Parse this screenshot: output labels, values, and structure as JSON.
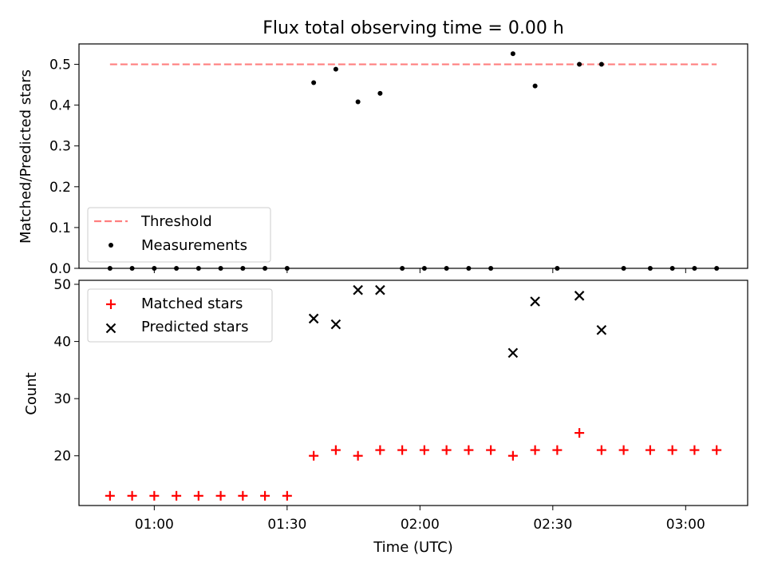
{
  "chart_data": [
    {
      "type": "scatter",
      "title": "Flux total observing time = 0.00 h",
      "xlabel": "",
      "ylabel": "Matched/Predicted stars",
      "xlim": [
        "00:43",
        "03:14"
      ],
      "ylim": [
        0,
        0.55
      ],
      "yticks": [
        "0.0",
        "0.1",
        "0.2",
        "0.3",
        "0.4",
        "0.5"
      ],
      "legend": {
        "placement": "lower-left",
        "entries": [
          "Threshold",
          "Measurements"
        ]
      },
      "series": [
        {
          "name": "Threshold",
          "style": "dashed-line",
          "color": "#ff7f7f",
          "x": [
            "00:50",
            "03:07"
          ],
          "y": [
            0.5,
            0.5
          ]
        },
        {
          "name": "Measurements",
          "style": "dot",
          "color": "#000000",
          "x": [
            "00:50",
            "00:55",
            "01:00",
            "01:05",
            "01:10",
            "01:15",
            "01:20",
            "01:25",
            "01:30",
            "01:36",
            "01:41",
            "01:46",
            "01:51",
            "01:56",
            "02:01",
            "02:06",
            "02:11",
            "02:16",
            "02:21",
            "02:26",
            "02:31",
            "02:36",
            "02:41",
            "02:46",
            "02:52",
            "02:57",
            "03:02",
            "03:07"
          ],
          "y": [
            0,
            0,
            0,
            0,
            0,
            0,
            0,
            0,
            0,
            0.455,
            0.488,
            0.408,
            0.429,
            0,
            0,
            0,
            0,
            0,
            0.526,
            0.447,
            0,
            0.5,
            0.5,
            0,
            0,
            0,
            0,
            0
          ]
        }
      ]
    },
    {
      "type": "scatter",
      "title": "",
      "xlabel": "Time (UTC)",
      "ylabel": "Count",
      "xlim": [
        "00:43",
        "03:14"
      ],
      "ylim": [
        11.3,
        50.7
      ],
      "yticks": [
        "20",
        "30",
        "40",
        "50"
      ],
      "xticks": [
        "01:00",
        "01:30",
        "02:00",
        "02:30",
        "03:00"
      ],
      "legend": {
        "placement": "upper-left",
        "entries": [
          "Matched stars",
          "Predicted stars"
        ]
      },
      "series": [
        {
          "name": "Matched stars",
          "marker": "plus",
          "color": "#ff0000",
          "x": [
            "00:50",
            "00:55",
            "01:00",
            "01:05",
            "01:10",
            "01:15",
            "01:20",
            "01:25",
            "01:30",
            "01:36",
            "01:41",
            "01:46",
            "01:51",
            "01:56",
            "02:01",
            "02:06",
            "02:11",
            "02:16",
            "02:21",
            "02:26",
            "02:31",
            "02:36",
            "02:41",
            "02:46",
            "02:52",
            "02:57",
            "03:02",
            "03:07"
          ],
          "y": [
            13,
            13,
            13,
            13,
            13,
            13,
            13,
            13,
            13,
            20,
            21,
            20,
            21,
            21,
            21,
            21,
            21,
            21,
            20,
            21,
            21,
            24,
            21,
            21,
            21,
            21,
            21,
            21
          ]
        },
        {
          "name": "Predicted stars",
          "marker": "x",
          "color": "#000000",
          "x": [
            "01:36",
            "01:41",
            "01:46",
            "01:51",
            "02:21",
            "02:26",
            "02:36",
            "02:41"
          ],
          "y": [
            44,
            43,
            49,
            49,
            38,
            47,
            48,
            42
          ]
        }
      ]
    }
  ]
}
